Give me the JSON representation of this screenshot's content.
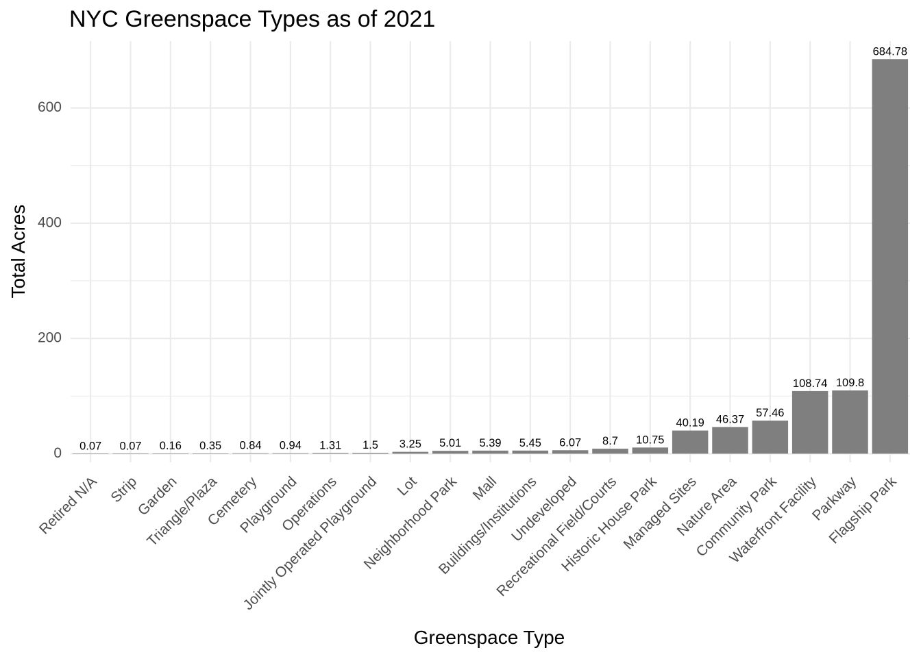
{
  "chart_data": {
    "type": "bar",
    "title": "NYC Greenspace Types as of 2021",
    "xlabel": "Greenspace Type",
    "ylabel": "Total Acres",
    "categories": [
      "Retired N/A",
      "Strip",
      "Garden",
      "Triangle/Plaza",
      "Cemetery",
      "Playground",
      "Operations",
      "Jointly Operated Playground",
      "Lot",
      "Neighborhood Park",
      "Mall",
      "Buildings/Institutions",
      "Undeveloped",
      "Recreational Field/Courts",
      "Historic House Park",
      "Managed Sites",
      "Nature Area",
      "Community Park",
      "Waterfront Facility",
      "Parkway",
      "Flagship Park"
    ],
    "values": [
      0.07,
      0.07,
      0.16,
      0.35,
      0.84,
      0.94,
      1.31,
      1.5,
      3.25,
      5.01,
      5.39,
      5.45,
      6.07,
      8.7,
      10.75,
      40.19,
      46.37,
      57.46,
      108.74,
      109.8,
      684.78
    ],
    "value_labels": [
      "0.07",
      "0.07",
      "0.16",
      "0.35",
      "0.84",
      "0.94",
      "1.31",
      "1.5",
      "3.25",
      "5.01",
      "5.39",
      "5.45",
      "6.07",
      "8.7",
      "10.75",
      "40.19",
      "46.37",
      "57.46",
      "108.74",
      "109.8",
      "684.78"
    ],
    "y_ticks": [
      0,
      200,
      400,
      600
    ],
    "y_tick_labels": [
      "0",
      "200",
      "400",
      "600"
    ],
    "y_minor_ticks": [
      100,
      300,
      500
    ],
    "ylim": [
      -15,
      716
    ],
    "grid": true,
    "legend": "none",
    "bar_color": "#7f7f7f"
  }
}
